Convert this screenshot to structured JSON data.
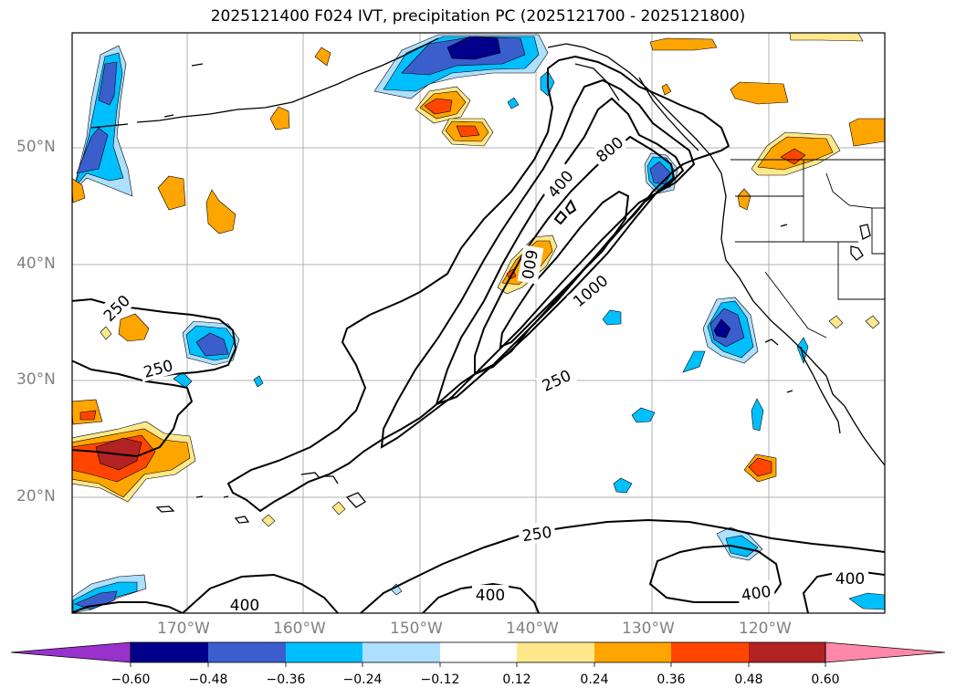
{
  "title": "2025121400 F024 IVT, precipitation PC (2025121700 - 2025121800)",
  "map": {
    "lat_labels": [
      "50°N",
      "40°N",
      "30°N",
      "20°N"
    ],
    "lon_labels": [
      "170°W",
      "160°W",
      "150°W",
      "140°W",
      "130°W",
      "120°W"
    ],
    "contour_labels": [
      "250",
      "250",
      "400",
      "800",
      "600",
      "1000",
      "250",
      "250",
      "400",
      "400",
      "400"
    ],
    "contour_color": "#000000",
    "grid_color": "#b0b0b0"
  },
  "colorbar": {
    "ticks": [
      "−0.60",
      "−0.48",
      "−0.36",
      "−0.24",
      "−0.12",
      "0.12",
      "0.24",
      "0.36",
      "0.48",
      "0.60"
    ],
    "colors": [
      "#9932CC",
      "#00008B",
      "#3A5FCD",
      "#00BFFF",
      "#ADDFFF",
      "#FFFFFF",
      "#FFE88C",
      "#FFA500",
      "#FF4500",
      "#B22222",
      "#FF88AA"
    ]
  }
}
